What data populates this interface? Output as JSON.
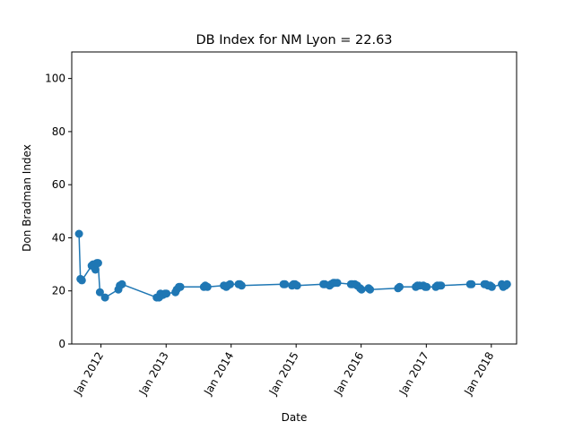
{
  "chart_data": {
    "type": "line",
    "title": "DB Index for NM Lyon = 22.63",
    "xlabel": "Date",
    "ylabel": "Don Bradman Index",
    "ylim": [
      0,
      110
    ],
    "xlim": [
      "2011-07-21",
      "2018-05-23"
    ],
    "yticks": [
      0,
      20,
      40,
      60,
      80,
      100
    ],
    "xticks": [
      {
        "date": "2012-01-01",
        "label": "Jan 2012"
      },
      {
        "date": "2013-01-01",
        "label": "Jan 2013"
      },
      {
        "date": "2014-01-01",
        "label": "Jan 2014"
      },
      {
        "date": "2015-01-01",
        "label": "Jan 2015"
      },
      {
        "date": "2016-01-01",
        "label": "Jan 2016"
      },
      {
        "date": "2017-01-01",
        "label": "Jan 2017"
      },
      {
        "date": "2018-01-01",
        "label": "Jan 2018"
      }
    ],
    "grid": false,
    "color": "#1f77b4",
    "marker": "circle",
    "series": [
      {
        "x": [
          "2011-08-31",
          "2011-09-08",
          "2011-09-16",
          "2011-11-10",
          "2011-11-18",
          "2011-12-01",
          "2011-12-09",
          "2011-12-16",
          "2011-12-26",
          "2012-01-24",
          "2012-04-08",
          "2012-04-16",
          "2012-04-28",
          "2012-11-09",
          "2012-11-22",
          "2012-11-30",
          "2012-12-14",
          "2012-12-26",
          "2013-01-03",
          "2013-02-22",
          "2013-03-02",
          "2013-03-14",
          "2013-03-22",
          "2013-08-01",
          "2013-08-09",
          "2013-08-21",
          "2013-11-21",
          "2013-12-05",
          "2013-12-13",
          "2013-12-26",
          "2014-02-12",
          "2014-02-20",
          "2014-03-01",
          "2014-10-22",
          "2014-10-30",
          "2014-12-09",
          "2014-12-17",
          "2014-12-26",
          "2015-01-06",
          "2015-06-03",
          "2015-06-11",
          "2015-07-08",
          "2015-07-16",
          "2015-07-29",
          "2015-08-06",
          "2015-08-20",
          "2015-11-05",
          "2015-11-13",
          "2015-11-27",
          "2015-12-10",
          "2015-12-26",
          "2016-01-03",
          "2016-02-12",
          "2016-02-20",
          "2016-07-26",
          "2016-08-04",
          "2016-11-03",
          "2016-11-12",
          "2016-11-24",
          "2016-12-15",
          "2016-12-26",
          "2017-01-03",
          "2017-02-23",
          "2017-03-04",
          "2017-03-16",
          "2017-03-25",
          "2017-09-04",
          "2017-09-12",
          "2017-11-23",
          "2017-12-02",
          "2017-12-14",
          "2017-12-26",
          "2018-01-04",
          "2018-03-01",
          "2018-03-09",
          "2018-03-22",
          "2018-03-30"
        ],
        "y": [
          41.5,
          24.5,
          24.0,
          29.5,
          30.0,
          28.0,
          30.5,
          30.5,
          19.5,
          17.5,
          20.5,
          22.0,
          22.5,
          17.5,
          17.5,
          19.0,
          18.5,
          19.0,
          19.0,
          19.5,
          20.5,
          21.5,
          21.5,
          21.5,
          22.0,
          21.5,
          22.0,
          21.5,
          22.0,
          22.5,
          22.5,
          22.5,
          22.0,
          22.5,
          22.5,
          22.0,
          22.5,
          22.5,
          22.0,
          22.5,
          22.5,
          22.0,
          22.5,
          23.0,
          23.0,
          23.0,
          22.5,
          22.5,
          22.5,
          22.0,
          21.0,
          20.5,
          21.0,
          20.5,
          21.0,
          21.5,
          21.5,
          22.0,
          22.0,
          22.0,
          21.5,
          21.5,
          21.5,
          22.0,
          22.0,
          22.0,
          22.5,
          22.5,
          22.5,
          22.5,
          22.0,
          22.0,
          21.5,
          22.5,
          21.5,
          22.0,
          22.5
        ]
      }
    ]
  }
}
